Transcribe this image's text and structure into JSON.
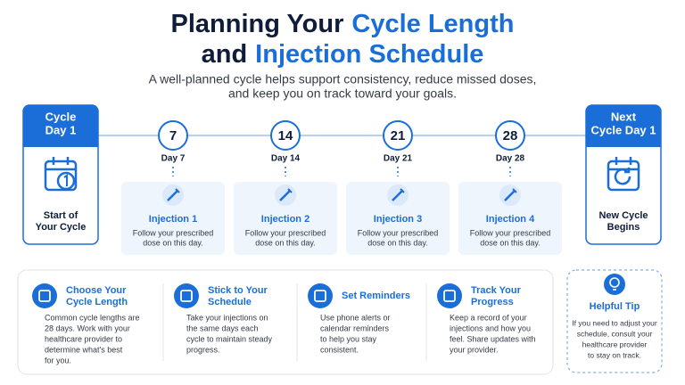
{
  "header": {
    "title_lines": [
      [
        "Planning Your",
        "Cycle Length"
      ],
      [
        "and",
        "Injection Schedule"
      ]
    ],
    "subtitle": [
      "A well-planned cycle helps support consistency, reduce missed doses,",
      "and keep you on track toward your goals."
    ]
  },
  "start": {
    "header": [
      "Cycle",
      "Day 1"
    ],
    "label": [
      "Start of",
      "Your Cycle"
    ]
  },
  "end": {
    "header": [
      "Next",
      "Cycle Day 1"
    ],
    "label": [
      "New Cycle",
      "Begins"
    ]
  },
  "milestones": [
    {
      "number": "7",
      "day": "Day 7",
      "title": "Injection 1",
      "body": [
        "Follow your prescribed",
        "dose on this day."
      ]
    },
    {
      "number": "14",
      "day": "Day 14",
      "title": "Injection 2",
      "body": [
        "Follow your prescribed",
        "dose on this day."
      ]
    },
    {
      "number": "21",
      "day": "Day 21",
      "title": "Injection 3",
      "body": [
        "Follow your prescribed",
        "dose on this day."
      ]
    },
    {
      "number": "28",
      "day": "Day 28",
      "title": "Injection 4",
      "body": [
        "Follow your prescribed",
        "dose on this day."
      ]
    }
  ],
  "tips": [
    {
      "title": [
        "Choose Your",
        "Cycle Length"
      ],
      "body": [
        "Common cycle lengths are",
        "28 days. Work with your",
        "healthcare provider to",
        "determine what's best",
        "for you."
      ]
    },
    {
      "title": [
        "Stick to Your",
        "Schedule"
      ],
      "body": [
        "Take your injections on",
        "the same days each",
        "cycle to maintain steady",
        "progress."
      ]
    },
    {
      "title": [
        "Set Reminders"
      ],
      "body": [
        "Use phone alerts or",
        "calendar reminders",
        "to help you stay",
        "consistent."
      ]
    },
    {
      "title": [
        "Track Your",
        "Progress"
      ],
      "body": [
        "Keep a record of your",
        "injections and how you",
        "feel. Share updates with",
        "your provider."
      ]
    }
  ],
  "helpful_tip": {
    "title": "Helpful Tip",
    "body": [
      "If you need to adjust your",
      "schedule, consult your",
      "healthcare provider",
      "to stay on track."
    ]
  }
}
